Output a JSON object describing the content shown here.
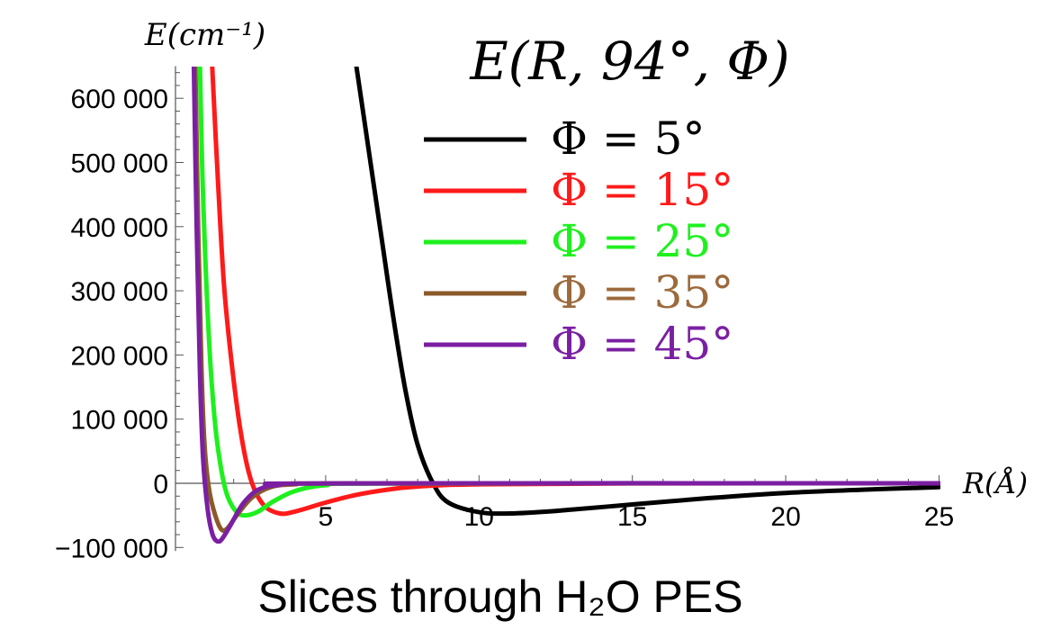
{
  "chart_data": {
    "type": "line",
    "title": "E(R, 94°, Φ)",
    "subtitle": "Slices through H₂O PES",
    "ylabel": "E(cm⁻¹)",
    "xlabel": "R(Å)",
    "xlim": [
      0,
      25
    ],
    "ylim": [
      -100000,
      650000
    ],
    "x_ticks": [
      5,
      10,
      15,
      20,
      25
    ],
    "y_ticks": [
      -100000,
      0,
      100000,
      200000,
      300000,
      400000,
      500000,
      600000
    ],
    "y_tick_labels": [
      "−100 000",
      "0",
      "100 000",
      "200 000",
      "300 000",
      "400 000",
      "500 000",
      "600 000"
    ],
    "legend_position": "top-right",
    "series": [
      {
        "name": "Φ = 5°",
        "color": "#000000",
        "label_color": "#000000",
        "points": [
          [
            6.0,
            650000
          ],
          [
            6.4,
            520000
          ],
          [
            6.8,
            390000
          ],
          [
            7.2,
            260000
          ],
          [
            7.6,
            145000
          ],
          [
            8.0,
            60000
          ],
          [
            8.5,
            0
          ],
          [
            9.0,
            -30000
          ],
          [
            10.0,
            -45000
          ],
          [
            11.0,
            -47000
          ],
          [
            12.5,
            -43000
          ],
          [
            15.0,
            -33000
          ],
          [
            17.5,
            -23000
          ],
          [
            20.0,
            -15000
          ],
          [
            22.5,
            -10000
          ],
          [
            25.0,
            -6000
          ]
        ]
      },
      {
        "name": "Φ = 15°",
        "color": "#ff1a1a",
        "label_color": "#ff1a1a",
        "points": [
          [
            1.3,
            650000
          ],
          [
            1.5,
            460000
          ],
          [
            1.7,
            300000
          ],
          [
            2.0,
            160000
          ],
          [
            2.3,
            60000
          ],
          [
            2.6,
            0
          ],
          [
            3.0,
            -35000
          ],
          [
            3.5,
            -47000
          ],
          [
            4.0,
            -44000
          ],
          [
            5.0,
            -30000
          ],
          [
            6.0,
            -18000
          ],
          [
            7.0,
            -10000
          ],
          [
            8.0,
            -5000
          ],
          [
            10.0,
            -1500
          ],
          [
            15.0,
            -200
          ],
          [
            25.0,
            0
          ]
        ]
      },
      {
        "name": "Φ = 25°",
        "color": "#1ef01e",
        "label_color": "#1ef01e",
        "points": [
          [
            0.9,
            650000
          ],
          [
            1.0,
            450000
          ],
          [
            1.2,
            220000
          ],
          [
            1.4,
            90000
          ],
          [
            1.6,
            20000
          ],
          [
            1.8,
            -20000
          ],
          [
            2.1,
            -45000
          ],
          [
            2.4,
            -50000
          ],
          [
            2.8,
            -44000
          ],
          [
            3.3,
            -28000
          ],
          [
            4.0,
            -12000
          ],
          [
            5.0,
            -3000
          ],
          [
            7.0,
            -300
          ],
          [
            25.0,
            0
          ]
        ]
      },
      {
        "name": "Φ = 35°",
        "color": "#8b5a2b",
        "label_color": "#9c6a3c",
        "points": [
          [
            0.75,
            650000
          ],
          [
            0.85,
            380000
          ],
          [
            0.95,
            180000
          ],
          [
            1.05,
            60000
          ],
          [
            1.2,
            -10000
          ],
          [
            1.4,
            -50000
          ],
          [
            1.6,
            -72000
          ],
          [
            1.8,
            -70000
          ],
          [
            2.1,
            -50000
          ],
          [
            2.6,
            -22000
          ],
          [
            3.2,
            -6000
          ],
          [
            4.0,
            -1500
          ],
          [
            6.0,
            -100
          ],
          [
            25.0,
            0
          ]
        ]
      },
      {
        "name": "Φ = 45°",
        "color": "#7b1fa2",
        "label_color": "#7b1fa2",
        "points": [
          [
            0.7,
            650000
          ],
          [
            0.8,
            380000
          ],
          [
            0.9,
            170000
          ],
          [
            1.0,
            40000
          ],
          [
            1.15,
            -40000
          ],
          [
            1.3,
            -78000
          ],
          [
            1.45,
            -90000
          ],
          [
            1.6,
            -88000
          ],
          [
            1.9,
            -65000
          ],
          [
            2.3,
            -32000
          ],
          [
            2.8,
            -10000
          ],
          [
            3.5,
            -2500
          ],
          [
            5.0,
            -200
          ],
          [
            25.0,
            0
          ]
        ]
      }
    ]
  }
}
